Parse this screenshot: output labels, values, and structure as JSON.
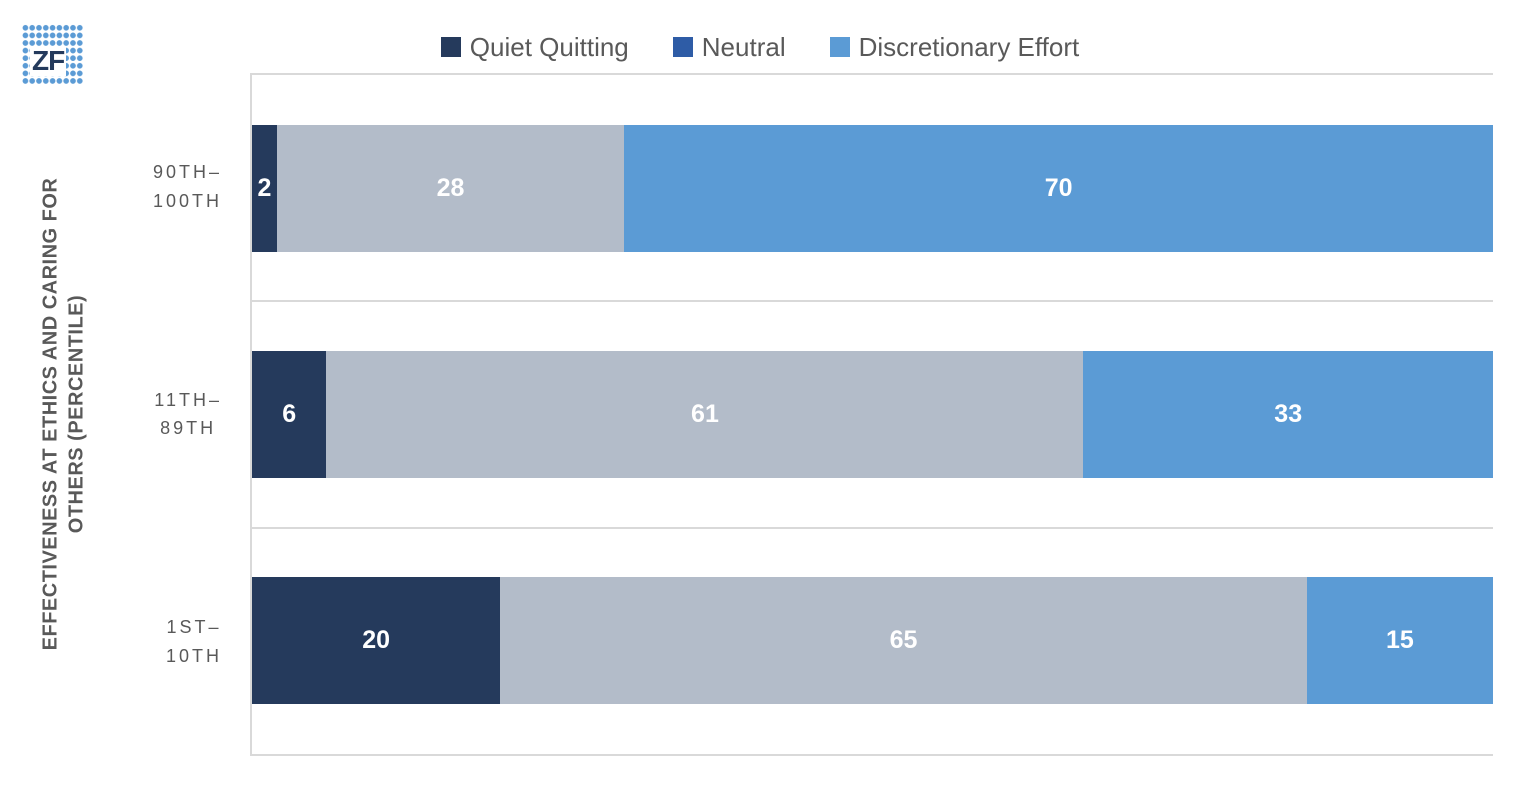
{
  "logo": {
    "text": "ZF"
  },
  "legend": {
    "items": [
      {
        "label": "Quiet Quitting",
        "color": "#253a5c"
      },
      {
        "label": "Neutral",
        "color": "#2e5ca6"
      },
      {
        "label": "Discretionary Effort",
        "color": "#5b9bd5"
      }
    ]
  },
  "axis_title": {
    "line1": "EFFECTIVENESS AT ETHICS AND CARING FOR",
    "line2": "OTHERS (PERCENTILE)"
  },
  "chart_data": {
    "type": "bar",
    "orientation": "horizontal",
    "stacked": true,
    "title": "",
    "xlabel": "",
    "ylabel": "EFFECTIVENESS AT ETHICS AND CARING FOR OTHERS (PERCENTILE)",
    "xlim": [
      0,
      100
    ],
    "legend_position": "top",
    "grid": "category-separator-lines",
    "categories": [
      "90TH–100TH",
      "11TH–89TH",
      "1ST–10TH"
    ],
    "category_label_lines": [
      [
        "90TH–",
        "100TH"
      ],
      [
        "11TH–",
        "89TH"
      ],
      [
        "1ST–",
        "10TH"
      ]
    ],
    "series": [
      {
        "name": "Quiet Quitting",
        "values": [
          2,
          6,
          20
        ],
        "bar_color": "#253a5c",
        "legend_color": "#253a5c"
      },
      {
        "name": "Neutral",
        "values": [
          28,
          61,
          65
        ],
        "bar_color": "#b3bcc9",
        "legend_color": "#2e5ca6"
      },
      {
        "name": "Discretionary Effort",
        "values": [
          70,
          33,
          15
        ],
        "bar_color": "#5b9bd5",
        "legend_color": "#5b9bd5"
      }
    ],
    "data_label_color": "#ffffff"
  },
  "colors": {
    "plot_border": "#d9d9d9",
    "text": "#595959",
    "background": "#ffffff",
    "logo_dot": "#5b9bd5",
    "logo_text": "#243a5c"
  }
}
